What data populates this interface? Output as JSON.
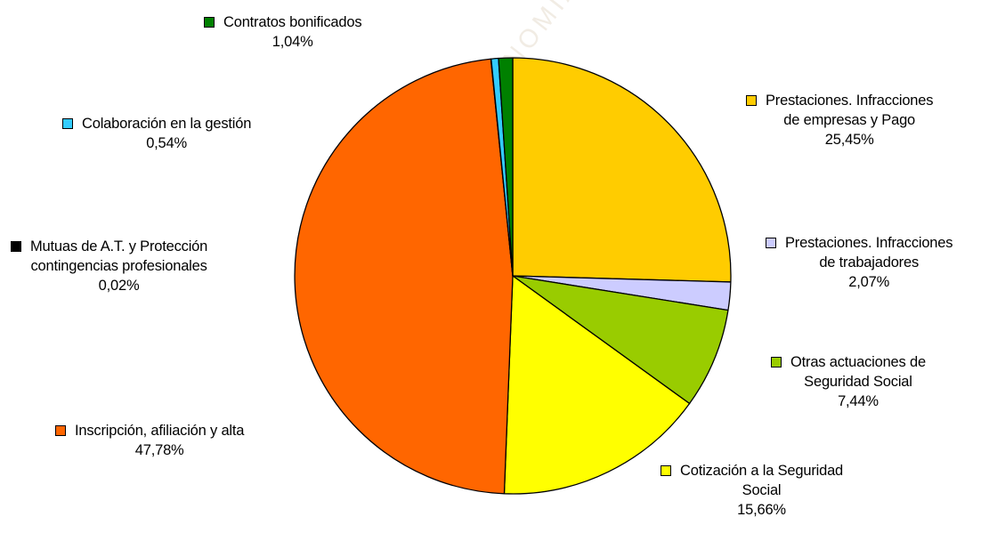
{
  "chart_data": {
    "type": "pie",
    "watermark": "TRABAJO Y ECONOMÍA SOCIAL",
    "slices": [
      {
        "label": [
          "Prestaciones.  Infracciones",
          "de empresas  y Pago"
        ],
        "pct_text": "25,45%",
        "value": 25.45,
        "color": "#ffcc00"
      },
      {
        "label": [
          "Prestaciones.  Infracciones",
          "de  trabajadores"
        ],
        "pct_text": "2,07%",
        "value": 2.07,
        "color": "#ccccff"
      },
      {
        "label": [
          "Otras actuaciones  de",
          "Seguridad  Social"
        ],
        "pct_text": "7,44%",
        "value": 7.44,
        "color": "#99cc00"
      },
      {
        "label": [
          "Cotización  a la Seguridad",
          "Social"
        ],
        "pct_text": "15,66%",
        "value": 15.66,
        "color": "#ffff00"
      },
      {
        "label": [
          "Inscripción,  afiliación  y alta"
        ],
        "pct_text": "47,78%",
        "value": 47.78,
        "color": "#ff6600"
      },
      {
        "label": [
          "Mutuas  de A.T.  y Protección",
          "contingencias  profesionales"
        ],
        "pct_text": "0,02%",
        "value": 0.02,
        "color": "#000000"
      },
      {
        "label": [
          "Colaboración  en la gestión"
        ],
        "pct_text": "0,54%",
        "value": 0.54,
        "color": "#33ccff"
      },
      {
        "label": [
          "Contratos  bonificados"
        ],
        "pct_text": "1,04%",
        "value": 1.04,
        "color": "#008000"
      }
    ]
  }
}
